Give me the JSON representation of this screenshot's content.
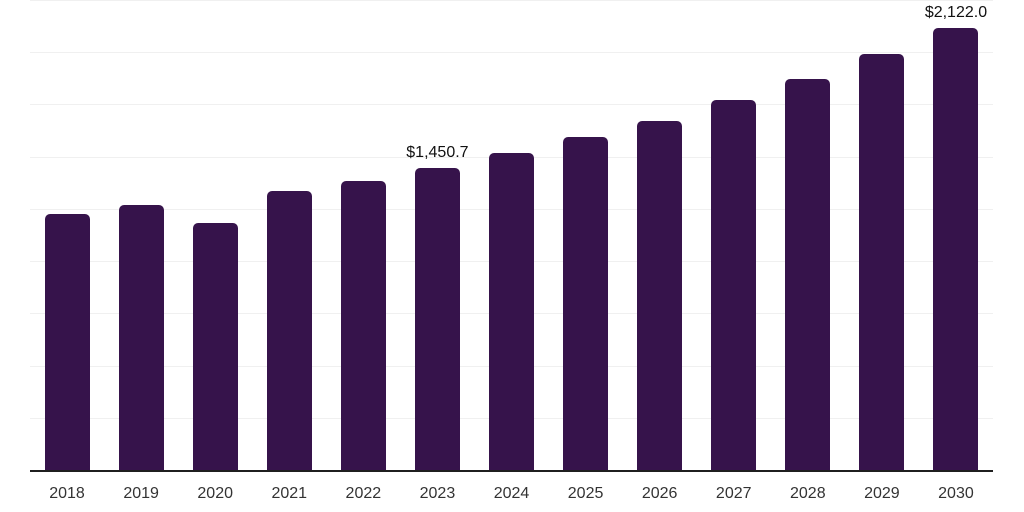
{
  "chart_data": {
    "type": "bar",
    "title": "",
    "xlabel": "",
    "ylabel": "",
    "categories": [
      "2018",
      "2019",
      "2020",
      "2021",
      "2022",
      "2023",
      "2024",
      "2025",
      "2026",
      "2027",
      "2028",
      "2029",
      "2030"
    ],
    "values": [
      1230,
      1273,
      1187,
      1340,
      1388,
      1450.7,
      1522,
      1599,
      1675,
      1776,
      1877,
      1996,
      2122.0
    ],
    "annotations": [
      {
        "category": "2023",
        "text": "$1,450.7"
      },
      {
        "category": "2030",
        "text": "$2,122.0"
      }
    ],
    "ylim": [
      0,
      2250
    ],
    "gridline_step": 250,
    "grid": "horizontal",
    "legend_position": "none",
    "y_axis_labels_visible": false,
    "colors": {
      "bar": "#36134b",
      "axis": "#1f1f1f",
      "grid": "#f0f0f0",
      "tick_text": "#333333",
      "annotation_text": "#111111",
      "background": "#ffffff"
    }
  }
}
